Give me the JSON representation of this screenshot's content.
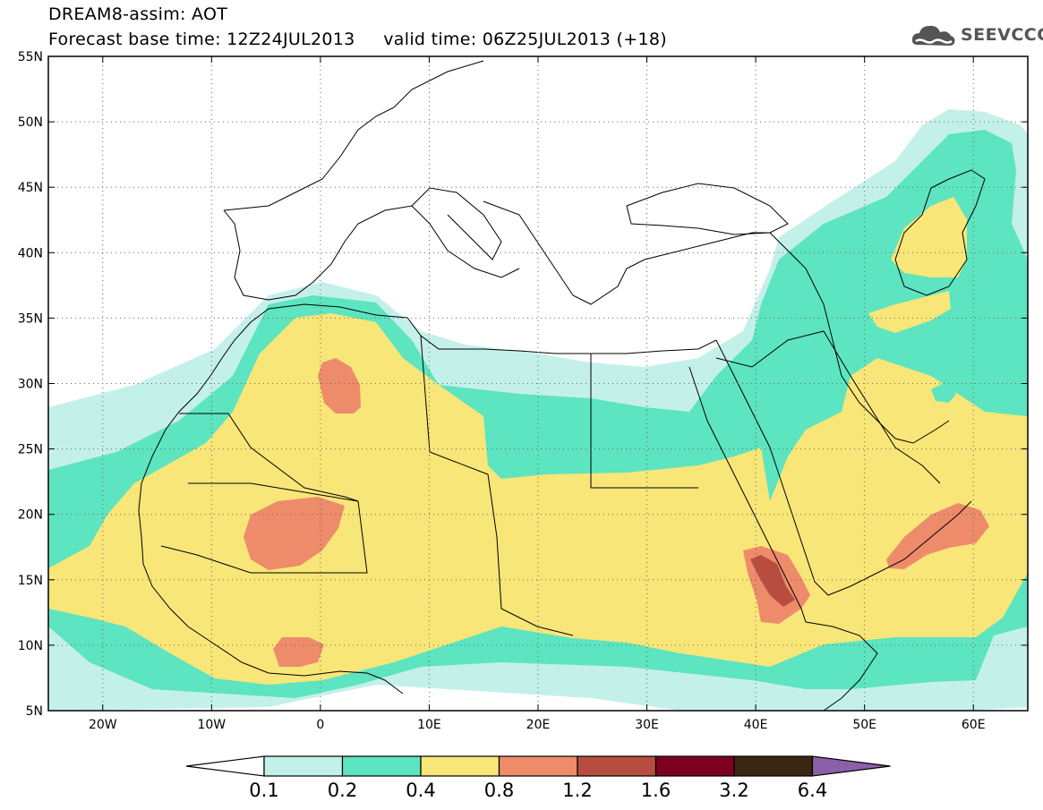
{
  "header": {
    "line1": "DREAM8-assim: AOT",
    "line2": "Forecast base time: 12Z24JUL2013     valid time: 06Z25JUL2013 (+18)"
  },
  "logo": {
    "text": "SEEVCCC",
    "icon": "cloud-icon"
  },
  "map": {
    "lon_range": [
      -25,
      65
    ],
    "lat_range": [
      5,
      55
    ],
    "lat_ticks": [
      "5N",
      "10N",
      "15N",
      "20N",
      "25N",
      "30N",
      "35N",
      "40N",
      "45N",
      "50N",
      "55N"
    ],
    "lon_ticks": [
      "20W",
      "10W",
      "0",
      "10E",
      "20E",
      "30E",
      "40E",
      "50E",
      "60E"
    ]
  },
  "legend": {
    "colors": [
      "#ffffff",
      "#c4f0ea",
      "#5de4c0",
      "#f8e678",
      "#ee8b6a",
      "#b64d3e",
      "#7d0021",
      "#3a2713",
      "#8a60a8"
    ],
    "labels": [
      "0.1",
      "0.2",
      "0.4",
      "0.8",
      "1.2",
      "1.6",
      "3.2",
      "6.4"
    ]
  }
}
